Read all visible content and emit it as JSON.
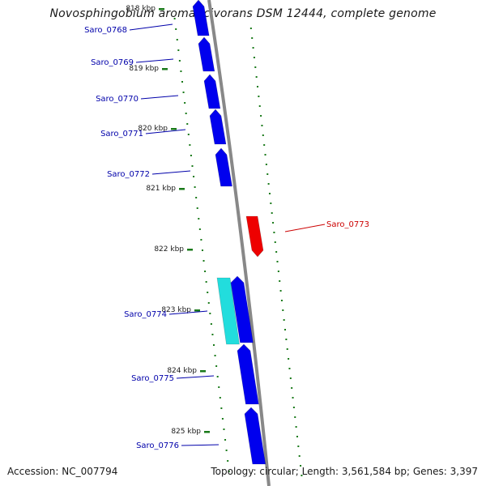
{
  "title": "Novosphingobium aromaticivorans DSM 12444, complete genome",
  "footer": {
    "accession": "Accession: NC_007794",
    "summary": "Topology: circular; Length: 3,561,584 bp; Genes: 3,397"
  },
  "colors": {
    "forward_gene": "#0000ee",
    "reverse_gene": "#ee0000",
    "highlight_gene": "#22dddd",
    "backbone": "#888888",
    "gc_ticks": "#1a7a1a",
    "forward_label": "#0000aa",
    "reverse_label": "#cc0000"
  },
  "scale_labels": [
    "818 kbp",
    "819 kbp",
    "820 kbp",
    "821 kbp",
    "822 kbp",
    "823 kbp",
    "824 kbp",
    "825 kbp"
  ],
  "genes": [
    {
      "name": "Saro_0768",
      "strand": "forward",
      "type": "cds"
    },
    {
      "name": "Saro_0769",
      "strand": "forward",
      "type": "cds"
    },
    {
      "name": "Saro_0770",
      "strand": "forward",
      "type": "cds"
    },
    {
      "name": "Saro_0771",
      "strand": "forward",
      "type": "cds"
    },
    {
      "name": "Saro_0772",
      "strand": "forward",
      "type": "cds"
    },
    {
      "name": "Saro_0773",
      "strand": "reverse",
      "type": "cds"
    },
    {
      "name": "Saro_0774",
      "strand": "forward",
      "type": "highlight"
    },
    {
      "name": "Saro_0775",
      "strand": "forward",
      "type": "cds"
    },
    {
      "name": "Saro_0776",
      "strand": "forward",
      "type": "cds"
    }
  ]
}
